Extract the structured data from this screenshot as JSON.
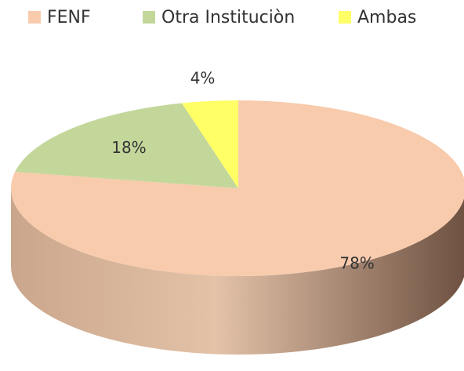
{
  "chart_data": {
    "type": "pie",
    "categories": [
      "FENF",
      "Otra Instituciòn",
      "Ambas"
    ],
    "values": [
      78,
      18,
      4
    ],
    "value_labels": [
      "78%",
      "18%",
      "4%"
    ],
    "colors": [
      "#f8cbad",
      "#c4d79b",
      "#ffff66"
    ],
    "legend": "top"
  }
}
